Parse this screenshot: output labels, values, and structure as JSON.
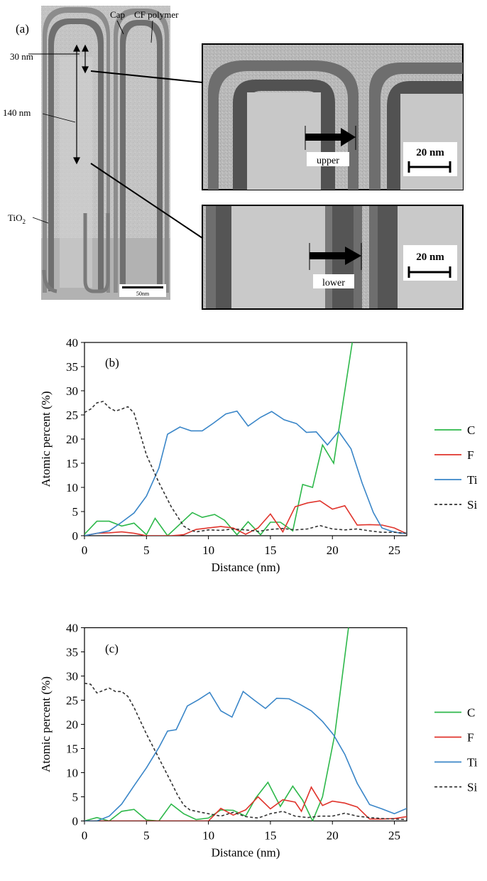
{
  "panel_a": {
    "label": "(a)",
    "callouts": {
      "cap": "Cap",
      "cf_polymer": "CF polymer",
      "dim_30": "30 nm",
      "dim_140": "140 nm",
      "tio2_main": "TiO",
      "tio2_sub": "2"
    },
    "scale_bar_main": "50nm",
    "inset_upper": {
      "arrow_label": "upper",
      "scale_label": "20 nm"
    },
    "inset_lower": {
      "arrow_label": "lower",
      "scale_label": "20 nm"
    }
  },
  "chart_data": [
    {
      "panel_label": "(b)",
      "type": "line",
      "xlabel": "Distance  (nm)",
      "ylabel": "Atomic  percent  (%)",
      "xlim": [
        0,
        26
      ],
      "ylim": [
        0,
        40
      ],
      "xticks": [
        0,
        5,
        10,
        15,
        20,
        25
      ],
      "yticks": [
        0,
        5,
        10,
        15,
        20,
        25,
        30,
        35,
        40
      ],
      "legend_position": "right",
      "series": [
        {
          "name": "C",
          "color": "#2db84a",
          "dash": "",
          "x": [
            0,
            1,
            2,
            3,
            4,
            5,
            5.7,
            6.7,
            7.7,
            8.7,
            9.5,
            10.5,
            11.3,
            12.3,
            13.2,
            14.2,
            15,
            15.8,
            16.8,
            17.6,
            18.4,
            19.2,
            20.1,
            21.6
          ],
          "y": [
            0.3,
            3,
            3,
            2,
            2.6,
            0.2,
            3.6,
            0,
            2.4,
            4.8,
            3.8,
            4.4,
            3.2,
            0.2,
            2.9,
            0.2,
            2.8,
            2.8,
            1,
            10.6,
            10,
            18.8,
            15,
            40
          ]
        },
        {
          "name": "F",
          "color": "#e0342c",
          "dash": "",
          "x": [
            0,
            1,
            2,
            3,
            4,
            5,
            6,
            7,
            8,
            9,
            10,
            11,
            12,
            13,
            14,
            15,
            16,
            17,
            18,
            19,
            20,
            21,
            22,
            23,
            24,
            25,
            26
          ],
          "y": [
            0,
            0.5,
            0.6,
            0.8,
            0.5,
            0,
            0,
            0,
            0.2,
            1.3,
            1.6,
            1.9,
            1.6,
            0.3,
            1.6,
            4.5,
            0.8,
            6,
            6.8,
            7.2,
            5.5,
            6.2,
            2.2,
            2.3,
            2.2,
            1.6,
            0.4
          ]
        },
        {
          "name": "Ti",
          "color": "#3a86c8",
          "dash": "",
          "x": [
            0,
            1,
            2,
            3,
            4,
            5,
            6,
            6.7,
            7.7,
            8.6,
            9.5,
            10.4,
            11.4,
            12.3,
            13.2,
            14.2,
            15.1,
            16.1,
            17.1,
            17.9,
            18.7,
            19.6,
            20.5,
            21.5,
            22.4,
            23.3,
            24,
            24.8,
            25.5,
            26
          ],
          "y": [
            0,
            0.5,
            1,
            2.8,
            4.7,
            8.2,
            14,
            21,
            22.5,
            21.7,
            21.7,
            23.3,
            25.2,
            25.8,
            22.7,
            24.5,
            25.7,
            24,
            23.2,
            21.4,
            21.5,
            18.8,
            21.6,
            18,
            10.9,
            4.8,
            1.6,
            0.9,
            0.5,
            0.5
          ]
        },
        {
          "name": "Si",
          "color": "#333333",
          "dash": "4 3",
          "x": [
            0,
            0.5,
            1,
            1.5,
            2,
            2.5,
            3,
            3.5,
            4,
            5,
            6,
            7,
            8,
            8.5,
            9,
            10,
            11,
            12,
            13,
            14,
            15,
            16,
            17,
            18,
            19,
            20,
            21,
            22,
            23,
            24,
            25,
            26
          ],
          "y": [
            25.5,
            26.2,
            27.5,
            27.8,
            26.5,
            25.8,
            26.2,
            26.7,
            25.4,
            16.7,
            11,
            6,
            2,
            1.2,
            0.8,
            1.2,
            1.1,
            1.4,
            1.2,
            0.9,
            1.3,
            1.5,
            1.2,
            1.4,
            2.1,
            1.4,
            1.2,
            1.4,
            1,
            0.7,
            0.7,
            0.5
          ]
        }
      ]
    },
    {
      "panel_label": "(c)",
      "type": "line",
      "xlabel": "Distance  (nm)",
      "ylabel": "Atomic  percent  (%)",
      "xlim": [
        0,
        26
      ],
      "ylim": [
        0,
        40
      ],
      "xticks": [
        0,
        5,
        10,
        15,
        20,
        25
      ],
      "yticks": [
        0,
        5,
        10,
        15,
        20,
        25,
        30,
        35,
        40
      ],
      "legend_position": "right",
      "series": [
        {
          "name": "C",
          "color": "#2db84a",
          "dash": "",
          "x": [
            0,
            1,
            2,
            3,
            4,
            5,
            6,
            7,
            8,
            9,
            10,
            11,
            12,
            13,
            13.8,
            14.8,
            15.8,
            16.8,
            17.6,
            18.4,
            19.2,
            20.2,
            21.3
          ],
          "y": [
            0,
            0.7,
            0,
            2,
            2.4,
            0.2,
            0,
            3.5,
            1.5,
            0.3,
            0.6,
            2.3,
            2.2,
            1,
            4.7,
            8,
            3,
            7.2,
            4.3,
            0,
            5,
            18,
            40
          ]
        },
        {
          "name": "F",
          "color": "#e0342c",
          "dash": "",
          "x": [
            0,
            1,
            2,
            3,
            4,
            5,
            6,
            7,
            8,
            9,
            10,
            11,
            12,
            13,
            14,
            15,
            16,
            17,
            17.5,
            18.3,
            19.2,
            20,
            21,
            22,
            23,
            24,
            25,
            26
          ],
          "y": [
            0,
            0,
            0,
            0,
            0,
            0,
            0,
            0,
            0,
            0,
            0,
            2.6,
            1.2,
            2.3,
            5,
            2.5,
            4.4,
            3.9,
            2,
            7,
            3.2,
            4.1,
            3.7,
            2.9,
            0.4,
            0.4,
            0.5,
            0.9
          ]
        },
        {
          "name": "Ti",
          "color": "#3a86c8",
          "dash": "",
          "x": [
            0,
            1,
            2,
            3,
            4,
            5,
            6,
            6.7,
            7.4,
            8.3,
            9.2,
            10.1,
            11,
            11.9,
            12.8,
            13.7,
            14.6,
            15.5,
            16.5,
            17.4,
            18.3,
            19.2,
            20.1,
            21,
            22,
            23,
            24,
            25,
            26
          ],
          "y": [
            0,
            0,
            1,
            3.5,
            7.3,
            11,
            15.2,
            18.6,
            18.9,
            23.8,
            25.1,
            26.6,
            22.8,
            21.5,
            26.8,
            25,
            23.3,
            25.4,
            25.3,
            24.1,
            22.8,
            20.6,
            17.8,
            13.8,
            7.8,
            3.4,
            2.5,
            1.5,
            2.6
          ]
        },
        {
          "name": "Si",
          "color": "#333333",
          "dash": "4 3",
          "x": [
            0,
            0.5,
            1,
            1.5,
            2,
            2.5,
            3,
            3.5,
            4,
            5,
            6,
            7,
            7.5,
            8,
            8.5,
            9,
            10,
            11,
            12,
            13,
            14,
            15,
            16,
            17,
            18,
            19,
            20,
            21,
            22,
            23,
            24,
            25,
            26
          ],
          "y": [
            28.5,
            28.3,
            26.5,
            27,
            27.5,
            26.8,
            26.8,
            25.8,
            23.5,
            18,
            13,
            8,
            5.4,
            3.3,
            2.3,
            2,
            1.5,
            1,
            1.8,
            0.9,
            0.6,
            1.5,
            2,
            1,
            0.7,
            1,
            1,
            1.6,
            1,
            0.7,
            0.5,
            0.4,
            0.3
          ]
        }
      ]
    }
  ]
}
